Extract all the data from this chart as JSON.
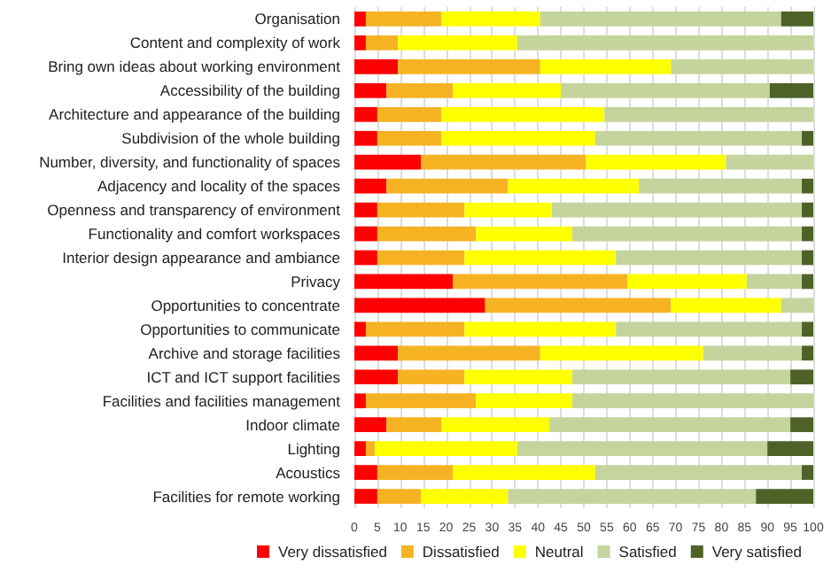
{
  "chart_data": {
    "type": "bar",
    "orientation": "horizontal",
    "stacked": true,
    "categories": [
      "Organisation",
      "Content and complexity of work",
      "Bring own ideas about working environment",
      "Accessibility of the building",
      "Architecture and appearance of the building",
      "Subdivision of the whole building",
      "Number, diversity, and functionality of spaces",
      "Adjacency and locality of the spaces",
      "Openness and transparency of environment",
      "Functionality and comfort workspaces",
      "Interior design appearance and ambiance",
      "Privacy",
      "Opportunities to concentrate",
      "Opportunities to communicate",
      "Archive and storage facilities",
      "ICT and ICT support facilities",
      "Facilities and facilities management",
      "Indoor climate",
      "Lighting",
      "Acoustics",
      "Facilities for remote working"
    ],
    "series": [
      {
        "name": "Very dissatisfied",
        "color": "#ff0000",
        "values": [
          2.5,
          2.5,
          9.5,
          7,
          5,
          5,
          14.5,
          7,
          5,
          5,
          5,
          21.5,
          28.5,
          2.5,
          9.5,
          9.5,
          2.5,
          7,
          2.5,
          5,
          5
        ]
      },
      {
        "name": "Dissatisfied",
        "color": "#f5b324",
        "values": [
          16.5,
          7,
          31,
          14.5,
          14,
          14,
          36,
          26.5,
          19,
          21.5,
          19,
          38,
          40.5,
          21.5,
          31,
          14.5,
          24,
          12,
          2,
          16.5,
          9.5
        ]
      },
      {
        "name": "Neutral",
        "color": "#ffff00",
        "values": [
          21.5,
          26,
          28.5,
          23.5,
          35.5,
          33.5,
          30.5,
          28.5,
          19,
          21,
          33,
          26,
          24,
          33,
          35.5,
          23.5,
          21,
          23.5,
          31,
          31,
          19
        ]
      },
      {
        "name": "Satisfied",
        "color": "#c4d49c",
        "values": [
          52.5,
          64.5,
          31,
          45.5,
          45.5,
          45,
          19,
          35.5,
          54.5,
          50,
          40.5,
          12,
          7,
          40.5,
          21.5,
          47.5,
          52.5,
          52.5,
          54.5,
          45,
          54
        ]
      },
      {
        "name": "Very satisfied",
        "color": "#4e6228",
        "values": [
          7,
          0,
          0,
          9.5,
          0,
          2.5,
          0,
          2.5,
          2.5,
          2.5,
          2.5,
          2.5,
          0,
          2.5,
          2.5,
          5,
          0,
          5,
          10,
          2.5,
          12.5
        ]
      }
    ],
    "xlim": [
      0,
      100
    ],
    "xticks": [
      0,
      5,
      10,
      15,
      20,
      25,
      30,
      35,
      40,
      45,
      50,
      55,
      60,
      65,
      70,
      75,
      80,
      85,
      90,
      95,
      100
    ],
    "grid": "x",
    "legend": "bottom"
  }
}
